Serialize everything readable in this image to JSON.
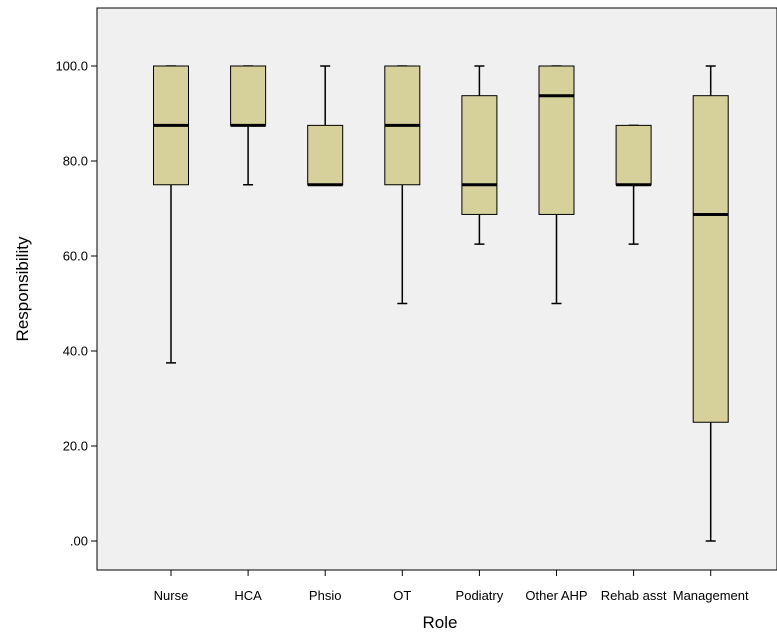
{
  "chart_data": {
    "type": "boxplot",
    "xlabel": "Role",
    "ylabel": "Responsibility",
    "ylim": [
      -5,
      113
    ],
    "yticks": [
      0,
      20,
      40,
      60,
      80,
      100
    ],
    "ytick_labels": [
      ".00",
      "20.0",
      "40.0",
      "60.0",
      "80.0",
      "100.0"
    ],
    "grid": false,
    "colors": {
      "plot_bg": "#f0f0f0",
      "box_fill": "#d6d19a",
      "stroke": "#000000"
    },
    "categories": [
      "Nurse",
      "HCA",
      "Phsio",
      "OT",
      "Podiatry",
      "Other AHP",
      "Rehab asst",
      "Management"
    ],
    "boxes": [
      {
        "min": 37.5,
        "q1": 75,
        "median": 87.5,
        "q3": 100,
        "max": 100
      },
      {
        "min": 75,
        "q1": 87.5,
        "median": 87.5,
        "q3": 100,
        "max": 100
      },
      {
        "min": 75,
        "q1": 75,
        "median": 75,
        "q3": 87.5,
        "max": 100
      },
      {
        "min": 50,
        "q1": 75,
        "median": 87.5,
        "q3": 100,
        "max": 100
      },
      {
        "min": 62.5,
        "q1": 68.75,
        "median": 75,
        "q3": 93.75,
        "max": 100
      },
      {
        "min": 50,
        "q1": 68.75,
        "median": 93.75,
        "q3": 100,
        "max": 100
      },
      {
        "min": 62.5,
        "q1": 75,
        "median": 75,
        "q3": 87.5,
        "max": 87.5
      },
      {
        "min": 0,
        "q1": 25,
        "median": 68.75,
        "q3": 93.75,
        "max": 100
      }
    ]
  }
}
